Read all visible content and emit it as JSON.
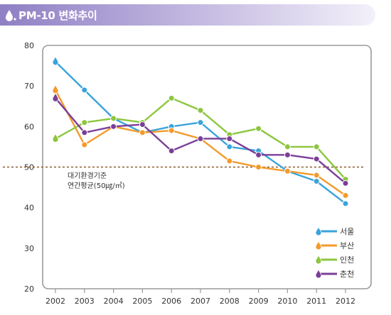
{
  "header": {
    "title": "PM-10 변화추이"
  },
  "colors": {
    "header_start": "#8f7fc4",
    "header_end": "#ede9f6",
    "seoul": "#3aa3db",
    "busan": "#f39a2b",
    "incheon": "#8cc63e",
    "chuncheon": "#7b3f98",
    "reference": "#8b5a2b",
    "frame": "#9a9a9a"
  },
  "chart_data": {
    "type": "line",
    "title": "",
    "xlabel": "",
    "ylabel": "",
    "x": [
      "2002",
      "2003",
      "2004",
      "2005",
      "2006",
      "2007",
      "2008",
      "2009",
      "2010",
      "2011",
      "2012"
    ],
    "ylim": [
      20,
      80
    ],
    "yticks": [
      "80",
      "70",
      "60",
      "50",
      "40",
      "30",
      "20"
    ],
    "grid": false,
    "legend_position": "bottom-right",
    "series": [
      {
        "name": "서울",
        "key": "seoul",
        "values": [
          76,
          69,
          62,
          58.5,
          60,
          61,
          55,
          54,
          49,
          46.5,
          41
        ]
      },
      {
        "name": "부산",
        "key": "busan",
        "values": [
          69,
          55.5,
          60,
          58.5,
          59,
          57,
          51.5,
          50,
          49,
          48,
          43
        ]
      },
      {
        "name": "인천",
        "key": "incheon",
        "values": [
          57,
          61,
          62,
          61,
          67,
          64,
          58,
          59.5,
          55,
          55,
          47
        ]
      },
      {
        "name": "춘천",
        "key": "chuncheon",
        "values": [
          67,
          58.5,
          60,
          60.5,
          54,
          57,
          57,
          53,
          53,
          52,
          46
        ]
      }
    ],
    "reference_line": {
      "value": 50,
      "label_line1": "대기환경기준",
      "label_line2": "연간평균(50㎍/㎥)"
    }
  }
}
